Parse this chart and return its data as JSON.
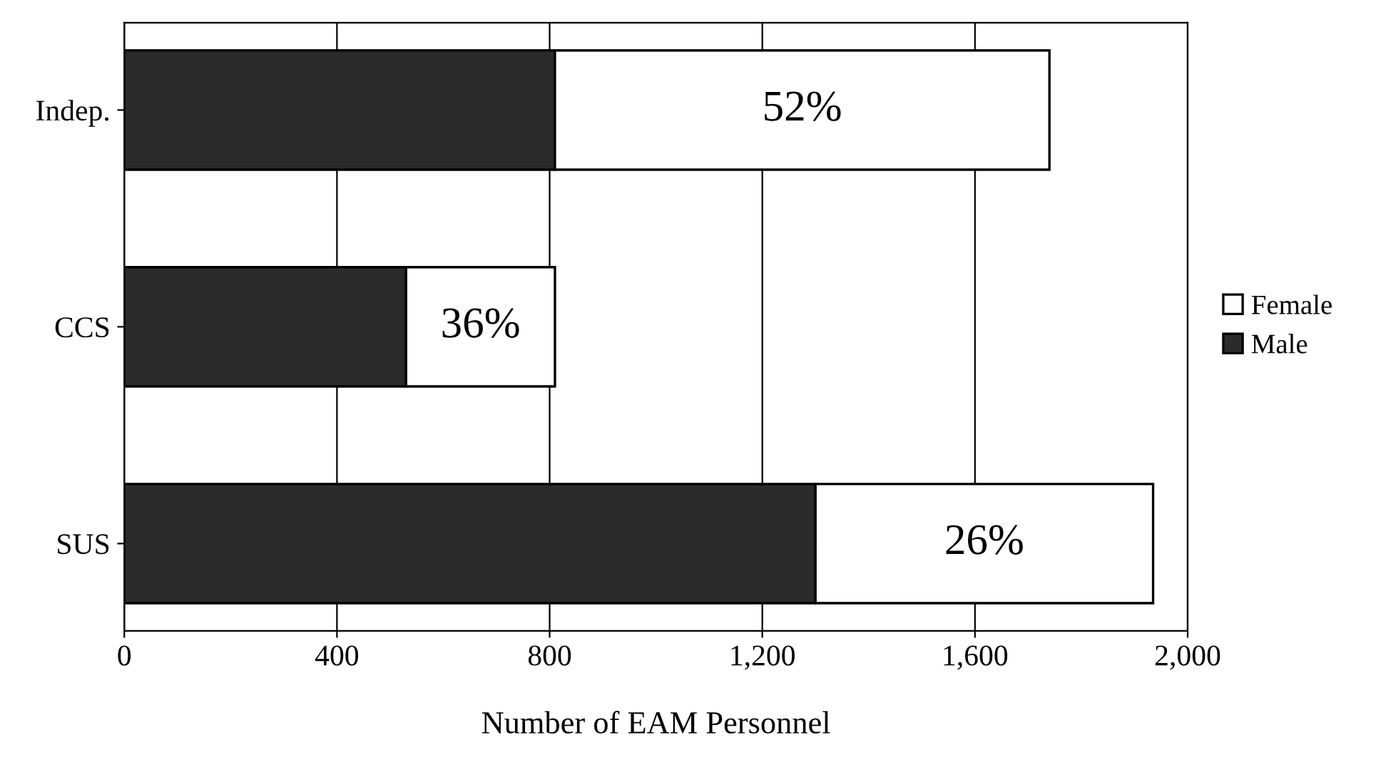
{
  "chart_data": {
    "type": "bar",
    "orientation": "horizontal",
    "stacked": true,
    "categories": [
      "Indep.",
      "CCS",
      "SUS"
    ],
    "xlabel": "Number of EAM Personnel",
    "xlim": [
      0,
      2000
    ],
    "xticks": [
      {
        "value": 0,
        "label": "0"
      },
      {
        "value": 400,
        "label": "400"
      },
      {
        "value": 800,
        "label": "800"
      },
      {
        "value": 1200,
        "label": "1,200"
      },
      {
        "value": 1600,
        "label": "1,600"
      },
      {
        "value": 2000,
        "label": "2,000"
      }
    ],
    "series": [
      {
        "name": "Male",
        "color": "#2b2b2b",
        "values": [
          810,
          530,
          1300
        ]
      },
      {
        "name": "Female",
        "color": "#ffffff",
        "values": [
          930,
          280,
          635
        ]
      }
    ],
    "annotations": [
      "52%",
      "36%",
      "26%"
    ],
    "grid": "x",
    "legend": "right"
  }
}
